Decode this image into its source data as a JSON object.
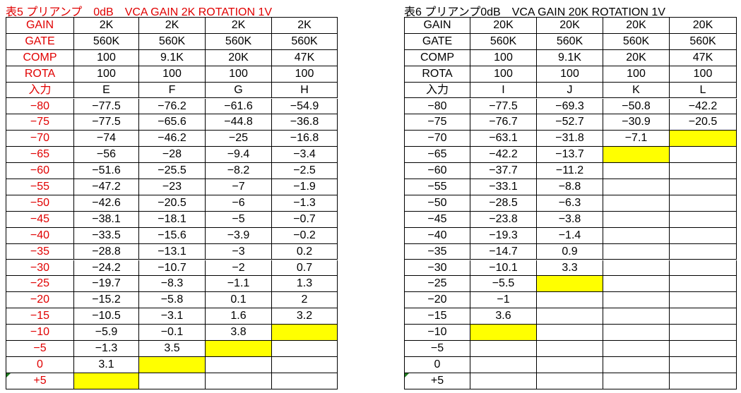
{
  "tables": [
    {
      "title": "表5 プリアンプ　0dB　VCA GAIN 2K ROTATION 1V",
      "rows": [
        [
          "GAIN",
          "2K",
          "2K",
          "2K",
          "2K"
        ],
        [
          "GATE",
          "560K",
          "560K",
          "560K",
          "560K"
        ],
        [
          "COMP",
          "100",
          "9.1K",
          "20K",
          "47K"
        ],
        [
          "ROTA",
          "100",
          "100",
          "100",
          "100"
        ],
        [
          "入力",
          "E",
          "F",
          "G",
          "H"
        ],
        [
          "−80",
          "−77.5",
          "−76.2",
          "−61.6",
          "−54.9"
        ],
        [
          "−75",
          "−77.5",
          "−65.6",
          "−44.8",
          "−36.8"
        ],
        [
          "−70",
          "−74",
          "−46.2",
          "−25",
          "−16.8"
        ],
        [
          "−65",
          "−56",
          "−28",
          "−9.4",
          "−3.4"
        ],
        [
          "−60",
          "−51.6",
          "−25.5",
          "−8.2",
          "−2.5"
        ],
        [
          "−55",
          "−47.2",
          "−23",
          "−7",
          "−1.9"
        ],
        [
          "−50",
          "−42.6",
          "−20.5",
          "−6",
          "−1.3"
        ],
        [
          "−45",
          "−38.1",
          "−18.1",
          "−5",
          "−0.7"
        ],
        [
          "−40",
          "−33.5",
          "−15.6",
          "−3.9",
          "−0.2"
        ],
        [
          "−35",
          "−28.8",
          "−13.1",
          "−3",
          "0.2"
        ],
        [
          "−30",
          "−24.2",
          "−10.7",
          "−2",
          "0.7"
        ],
        [
          "−25",
          "−19.7",
          "−8.3",
          "−1.1",
          "1.3"
        ],
        [
          "−20",
          "−15.2",
          "−5.8",
          "0.1",
          "2"
        ],
        [
          "−15",
          "−10.5",
          "−3.1",
          "1.6",
          "3.2"
        ],
        [
          "−10",
          "−5.9",
          "−0.1",
          "3.8",
          null
        ],
        [
          "−5",
          "−1.3",
          "3.5",
          null,
          null
        ],
        [
          "0",
          "3.1",
          null,
          null,
          null
        ],
        [
          "+5",
          null,
          null,
          null,
          null
        ]
      ]
    },
    {
      "title": "表6 プリアンプ0dB　VCA GAIN 20K ROTATION 1V",
      "rows": [
        [
          "GAIN",
          "20K",
          "20K",
          "20K",
          "20K"
        ],
        [
          "GATE",
          "560K",
          "560K",
          "560K",
          "560K"
        ],
        [
          "COMP",
          "100",
          "9.1K",
          "20K",
          "47K"
        ],
        [
          "ROTA",
          "100",
          "100",
          "100",
          "100"
        ],
        [
          "入力",
          "I",
          "J",
          "K",
          "L"
        ],
        [
          "−80",
          "−77.5",
          "−69.3",
          "−50.8",
          "−42.2"
        ],
        [
          "−75",
          "−76.7",
          "−52.7",
          "−30.9",
          "−20.5"
        ],
        [
          "−70",
          "−63.1",
          "−31.8",
          "−7.1",
          null
        ],
        [
          "−65",
          "−42.2",
          "−13.7",
          null,
          null
        ],
        [
          "−60",
          "−37.7",
          "−11.2",
          null,
          null
        ],
        [
          "−55",
          "−33.1",
          "−8.8",
          null,
          null
        ],
        [
          "−50",
          "−28.5",
          "−6.3",
          null,
          null
        ],
        [
          "−45",
          "−23.8",
          "−3.8",
          null,
          null
        ],
        [
          "−40",
          "−19.3",
          "−1.4",
          null,
          null
        ],
        [
          "−35",
          "−14.7",
          "0.9",
          null,
          null
        ],
        [
          "−30",
          "−10.1",
          "3.3",
          null,
          null
        ],
        [
          "−25",
          "−5.5",
          null,
          null,
          null
        ],
        [
          "−20",
          "−1",
          null,
          null,
          null
        ],
        [
          "−15",
          "3.6",
          null,
          null,
          null
        ],
        [
          "−10",
          null,
          null,
          null,
          null
        ],
        [
          "−5",
          null,
          null,
          null,
          null
        ],
        [
          "0",
          null,
          null,
          null,
          null
        ],
        [
          "+5",
          null,
          null,
          null,
          null
        ]
      ]
    }
  ]
}
